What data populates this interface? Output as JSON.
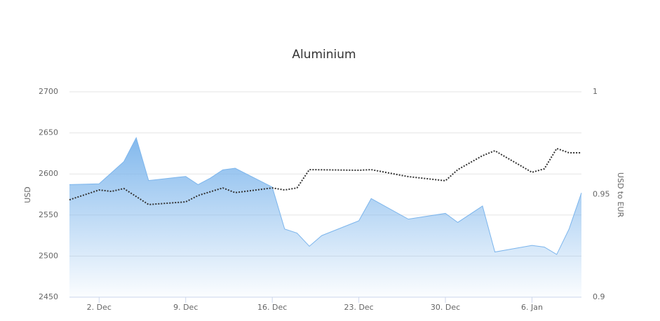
{
  "chart_data": {
    "type": "area-line",
    "title": "Aluminium",
    "y_label": "USD",
    "y2_label": "USD to EUR",
    "xlim": [
      -0.4,
      41
    ],
    "xticks": [
      {
        "value": 2,
        "label": "2. Dec"
      },
      {
        "value": 9,
        "label": "9. Dec"
      },
      {
        "value": 16,
        "label": "16. Dec"
      },
      {
        "value": 23,
        "label": "23. Dec"
      },
      {
        "value": 30,
        "label": "30. Dec"
      },
      {
        "value": 37,
        "label": "6. Jan"
      }
    ],
    "ylim": [
      2450,
      2700
    ],
    "yticks": [
      2450,
      2500,
      2550,
      2600,
      2650,
      2700
    ],
    "y2lim": [
      0.9,
      1
    ],
    "y2ticks": [
      0.9,
      0.95,
      1
    ],
    "grid": true,
    "series": [
      {
        "kind": "area",
        "color": "#7cb5ec",
        "axis": "y",
        "x": [
          -0.4,
          2,
          4,
          5,
          6,
          9,
          10,
          11,
          12,
          13,
          16,
          17,
          18,
          19,
          20,
          23,
          24,
          27,
          30,
          31,
          33,
          34,
          37,
          38,
          39,
          40,
          41
        ],
        "values": [
          2587,
          2588,
          2615,
          2644,
          2592,
          2597,
          2587,
          2595,
          2605,
          2607,
          2584,
          2533,
          2528,
          2512,
          2525,
          2543,
          2570,
          2545,
          2552,
          2541,
          2561,
          2505,
          2513,
          2511,
          2502,
          2533,
          2577
        ]
      },
      {
        "kind": "dotted-line",
        "color": "#333333",
        "axis": "y2",
        "x": [
          -0.4,
          2,
          3,
          4,
          6,
          9,
          10,
          12,
          13,
          16,
          17,
          18,
          19,
          23,
          24,
          27,
          30,
          31,
          33,
          34,
          37,
          38,
          39,
          40,
          41
        ],
        "values": [
          0.9474,
          0.9522,
          0.9515,
          0.9529,
          0.9451,
          0.9464,
          0.9495,
          0.9532,
          0.9509,
          0.9532,
          0.9522,
          0.9532,
          0.9621,
          0.9618,
          0.9621,
          0.9587,
          0.9567,
          0.9621,
          0.9689,
          0.9713,
          0.9608,
          0.9625,
          0.9724,
          0.9703,
          0.9703
        ]
      }
    ]
  }
}
